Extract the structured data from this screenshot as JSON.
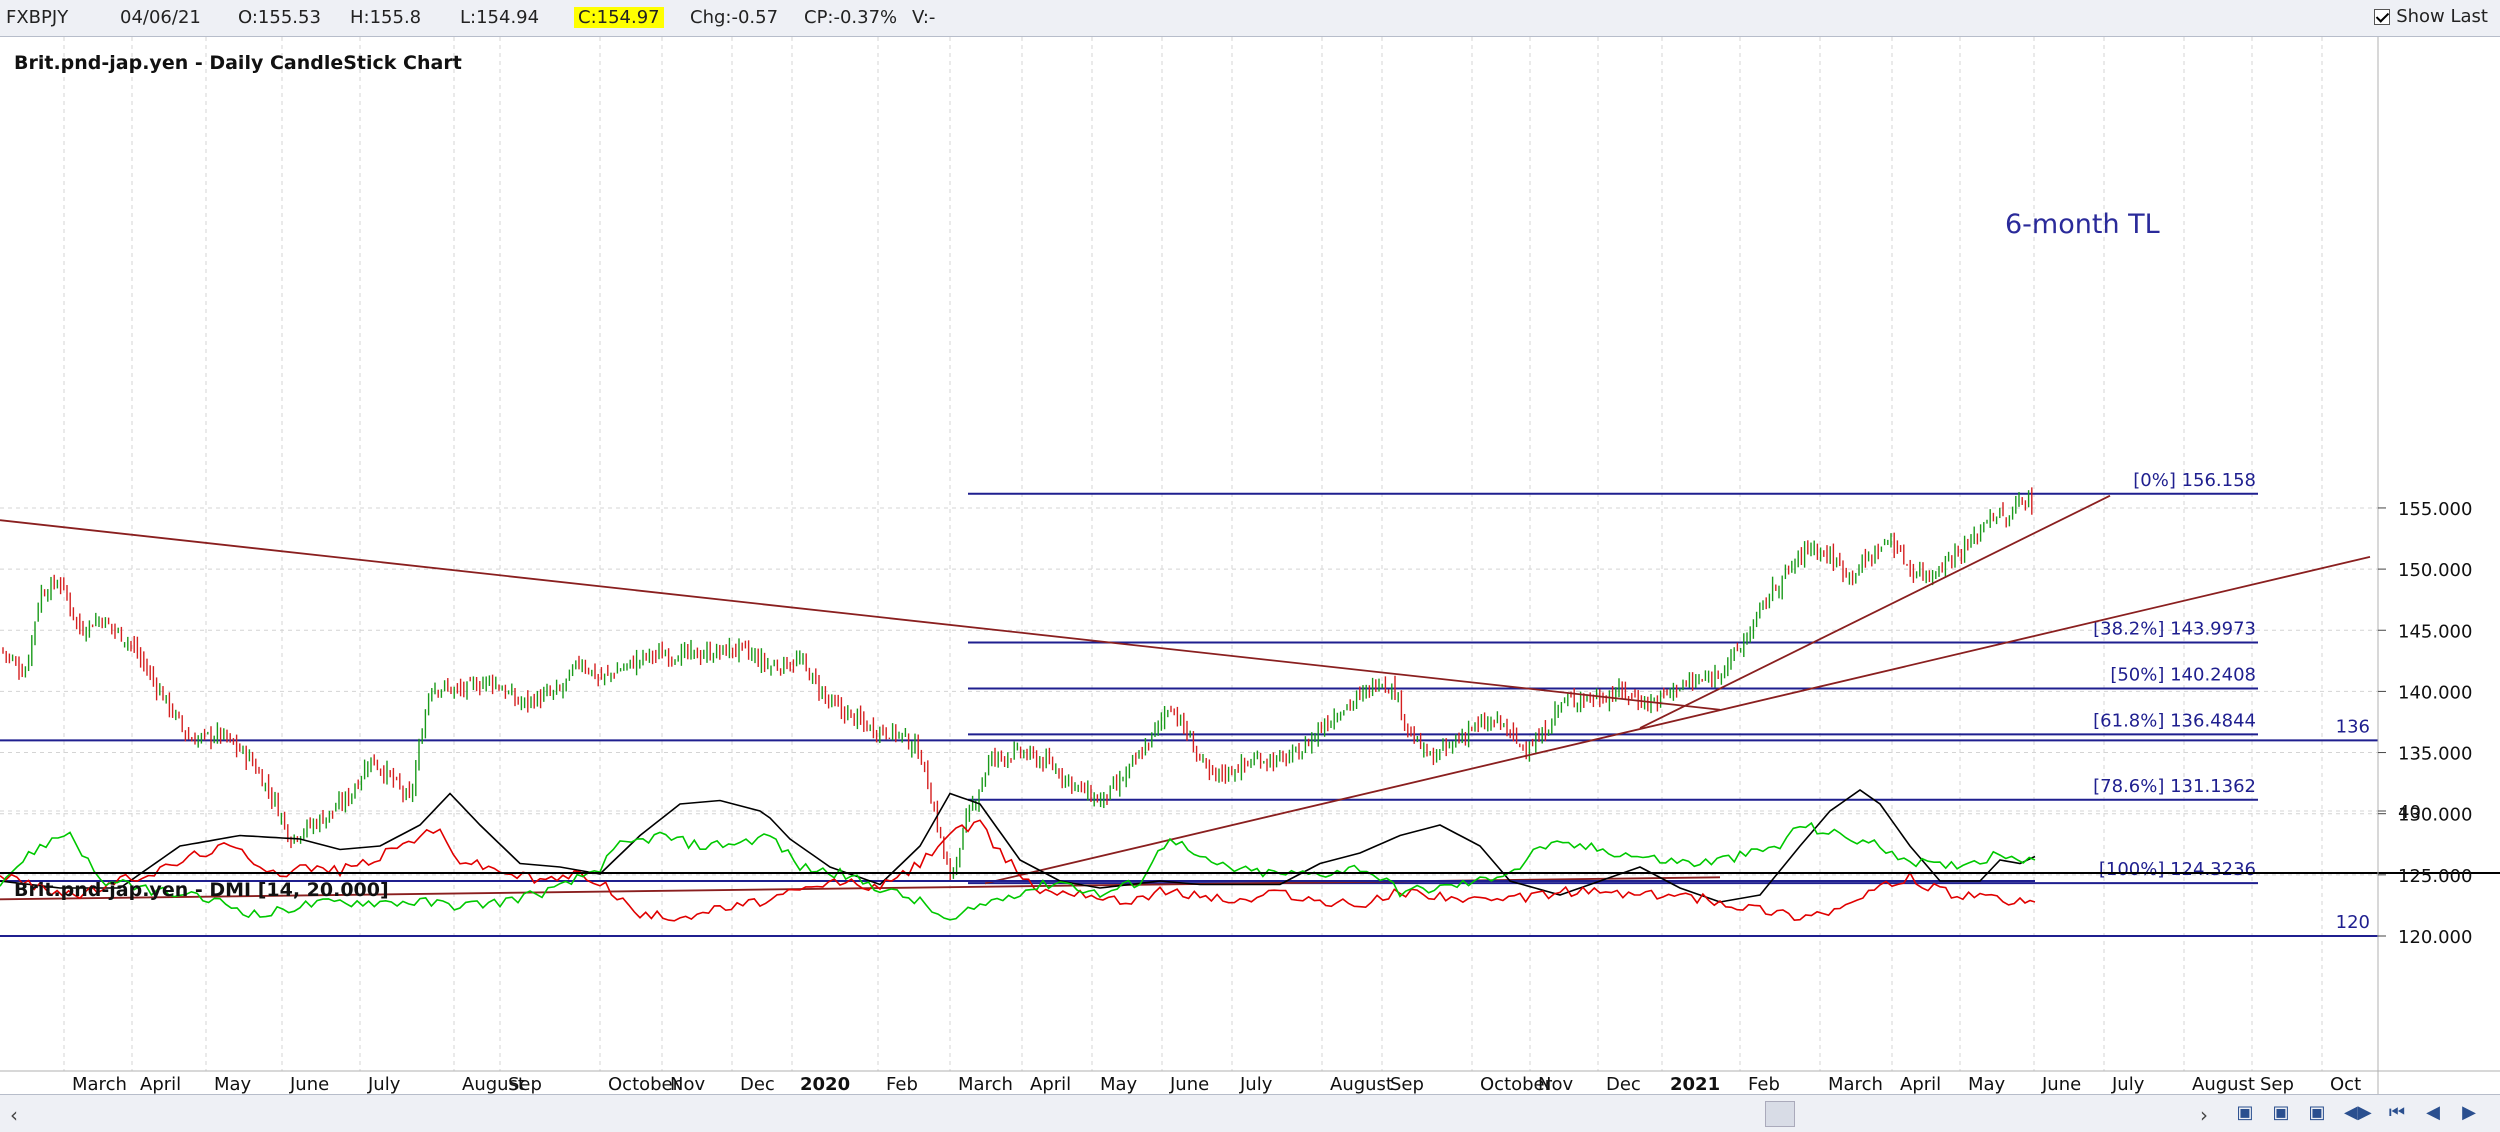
{
  "header": {
    "symbol": "FXBPJY",
    "date": "04/06/21",
    "open": "O:155.53",
    "high": "H:155.8",
    "low": "L:154.94",
    "close": "C:154.97",
    "change": "Chg:-0.57",
    "change_pct": "CP:-0.37%",
    "volume": "V:-",
    "show_last_label": "Show Last",
    "show_last_checked": true
  },
  "chart_data": [
    {
      "type": "candlestick",
      "title": "Brit.pnd-jap.yen - Daily CandleStick Chart",
      "ylim": [
        119,
        161
      ],
      "y_ticks": [
        "120.000",
        "125.000",
        "130.000",
        "135.000",
        "140.000",
        "145.000",
        "150.000",
        "155.000"
      ],
      "grid": true,
      "x_labels": [
        "March",
        "April",
        "May",
        "June",
        "July",
        "August",
        "Sep",
        "October",
        "Nov",
        "Dec",
        "2020",
        "Feb",
        "March",
        "April",
        "May",
        "June",
        "July",
        "August",
        "Sep",
        "October",
        "Nov",
        "Dec",
        "2021",
        "Feb",
        "March",
        "April",
        "May",
        "June",
        "July",
        "August",
        "Sep",
        "Oct"
      ],
      "close_path": [
        [
          0,
          143.5
        ],
        [
          25,
          141.5
        ],
        [
          40,
          148
        ],
        [
          60,
          149
        ],
        [
          80,
          145
        ],
        [
          100,
          146
        ],
        [
          130,
          144
        ],
        [
          160,
          140
        ],
        [
          190,
          136
        ],
        [
          220,
          136.5
        ],
        [
          250,
          134.5
        ],
        [
          275,
          131
        ],
        [
          290,
          128
        ],
        [
          310,
          129
        ],
        [
          330,
          130
        ],
        [
          350,
          131.5
        ],
        [
          370,
          134.5
        ],
        [
          390,
          133
        ],
        [
          410,
          131
        ],
        [
          430,
          140.5
        ],
        [
          460,
          140
        ],
        [
          490,
          141
        ],
        [
          520,
          139
        ],
        [
          560,
          140
        ],
        [
          580,
          142.5
        ],
        [
          600,
          141
        ],
        [
          650,
          143
        ],
        [
          700,
          143
        ],
        [
          740,
          143.5
        ],
        [
          770,
          142
        ],
        [
          800,
          142.5
        ],
        [
          830,
          139
        ],
        [
          870,
          137
        ],
        [
          900,
          136.5
        ],
        [
          920,
          135
        ],
        [
          935,
          130
        ],
        [
          950,
          124.5
        ],
        [
          965,
          129
        ],
        [
          990,
          134.5
        ],
        [
          1020,
          135
        ],
        [
          1050,
          134
        ],
        [
          1080,
          132
        ],
        [
          1100,
          131
        ],
        [
          1120,
          132.5
        ],
        [
          1150,
          136
        ],
        [
          1170,
          139
        ],
        [
          1190,
          136
        ],
        [
          1210,
          133
        ],
        [
          1230,
          133.5
        ],
        [
          1260,
          134.5
        ],
        [
          1280,
          134.3
        ],
        [
          1300,
          135
        ],
        [
          1320,
          137
        ],
        [
          1340,
          138.5
        ],
        [
          1360,
          139.5
        ],
        [
          1380,
          141
        ],
        [
          1395,
          140
        ],
        [
          1410,
          136.5
        ],
        [
          1430,
          134.5
        ],
        [
          1450,
          135.5
        ],
        [
          1470,
          137
        ],
        [
          1500,
          137.5
        ],
        [
          1520,
          135.5
        ],
        [
          1540,
          136
        ],
        [
          1560,
          139
        ],
        [
          1580,
          139.5
        ],
        [
          1600,
          139.5
        ],
        [
          1620,
          140
        ],
        [
          1650,
          139
        ],
        [
          1680,
          140.5
        ],
        [
          1710,
          141
        ],
        [
          1740,
          143.5
        ],
        [
          1770,
          148
        ],
        [
          1790,
          150
        ],
        [
          1810,
          152
        ],
        [
          1830,
          151
        ],
        [
          1850,
          149.5
        ],
        [
          1870,
          151
        ],
        [
          1890,
          152.5
        ],
        [
          1910,
          150
        ],
        [
          1930,
          149.5
        ],
        [
          1950,
          151
        ],
        [
          1970,
          152
        ],
        [
          1990,
          154.5
        ],
        [
          2010,
          154
        ],
        [
          2020,
          156
        ],
        [
          2030,
          155.5
        ],
        [
          2035,
          154.97
        ]
      ],
      "horizontal_lines": [
        {
          "label": "[0%] 156.158",
          "value": 156.158
        },
        {
          "label": "[38.2%] 143.9973",
          "value": 143.9973
        },
        {
          "label": "[50%] 140.2408",
          "value": 140.2408
        },
        {
          "label": "[61.8%] 136.4844",
          "value": 136.4844
        },
        {
          "label": "[78.6%] 131.1362",
          "value": 131.1362
        },
        {
          "label": "[100%] 124.3236",
          "value": 124.3236
        }
      ],
      "level_lines": [
        {
          "label": "136",
          "value": 136
        },
        {
          "label": "120",
          "value": 120
        }
      ],
      "trend_lines": [
        {
          "from": [
            0,
            154
          ],
          "to": [
            1720,
            138.5
          ]
        },
        {
          "from": [
            985,
            124.3
          ],
          "to": [
            2370,
            151
          ]
        },
        {
          "from": [
            1640,
            137
          ],
          "to": [
            2110,
            156
          ]
        },
        {
          "from": [
            0,
            123
          ],
          "to": [
            1720,
            124.8
          ]
        }
      ],
      "annotation": "6-month TL"
    },
    {
      "type": "line",
      "title": "Brit.pnd-jap.yen - DMI [14, 20.000]",
      "y_ticks": [
        "40"
      ],
      "reference_level": 20,
      "series": [
        {
          "color": "#000000",
          "values": [
            [
              0,
              20
            ],
            [
              60,
              18
            ],
            [
              120,
              18
            ],
            [
              180,
              30
            ],
            [
              240,
              33
            ],
            [
              300,
              32
            ],
            [
              340,
              29
            ],
            [
              380,
              30
            ],
            [
              420,
              36
            ],
            [
              450,
              45
            ],
            [
              480,
              36
            ],
            [
              520,
              25
            ],
            [
              560,
              24
            ],
            [
              600,
              22
            ],
            [
              640,
              33
            ],
            [
              680,
              42
            ],
            [
              720,
              43
            ],
            [
              760,
              40
            ],
            [
              770,
              38
            ],
            [
              790,
              32
            ],
            [
              830,
              24
            ],
            [
              880,
              19
            ],
            [
              920,
              30
            ],
            [
              950,
              45
            ],
            [
              980,
              42
            ],
            [
              1020,
              26
            ],
            [
              1060,
              20
            ],
            [
              1100,
              18
            ],
            [
              1160,
              20
            ],
            [
              1200,
              19
            ],
            [
              1240,
              19
            ],
            [
              1280,
              19
            ],
            [
              1320,
              25
            ],
            [
              1360,
              28
            ],
            [
              1400,
              33
            ],
            [
              1440,
              36
            ],
            [
              1480,
              30
            ],
            [
              1510,
              20
            ],
            [
              1560,
              16
            ],
            [
              1600,
              20
            ],
            [
              1640,
              24
            ],
            [
              1680,
              18
            ],
            [
              1720,
              14
            ],
            [
              1760,
              16
            ],
            [
              1800,
              30
            ],
            [
              1830,
              40
            ],
            [
              1860,
              46
            ],
            [
              1880,
              42
            ],
            [
              1910,
              30
            ],
            [
              1940,
              20
            ],
            [
              1980,
              20
            ],
            [
              2000,
              26
            ],
            [
              2020,
              25
            ],
            [
              2035,
              27
            ]
          ]
        },
        {
          "color": "#e00000",
          "values": [
            [
              0,
              22
            ],
            [
              40,
              18
            ],
            [
              80,
              16
            ],
            [
              120,
              20
            ],
            [
              160,
              23
            ],
            [
              200,
              28
            ],
            [
              230,
              30
            ],
            [
              260,
              25
            ],
            [
              280,
              22
            ],
            [
              300,
              24
            ],
            [
              340,
              23
            ],
            [
              380,
              27
            ],
            [
              420,
              33
            ],
            [
              440,
              34
            ],
            [
              460,
              26
            ],
            [
              500,
              23
            ],
            [
              540,
              20
            ],
            [
              580,
              22
            ],
            [
              600,
              20
            ],
            [
              640,
              10
            ],
            [
              680,
              10
            ],
            [
              720,
              12
            ],
            [
              760,
              14
            ],
            [
              800,
              17
            ],
            [
              840,
              20
            ],
            [
              880,
              18
            ],
            [
              920,
              25
            ],
            [
              950,
              34
            ],
            [
              980,
              36
            ],
            [
              1000,
              28
            ],
            [
              1040,
              17
            ],
            [
              1080,
              17
            ],
            [
              1120,
              14
            ],
            [
              1160,
              17
            ],
            [
              1200,
              16
            ],
            [
              1240,
              14
            ],
            [
              1280,
              17
            ],
            [
              1320,
              14
            ],
            [
              1360,
              13
            ],
            [
              1400,
              17
            ],
            [
              1440,
              16
            ],
            [
              1480,
              14
            ],
            [
              1520,
              15
            ],
            [
              1560,
              17
            ],
            [
              1600,
              17
            ],
            [
              1640,
              16
            ],
            [
              1680,
              16
            ],
            [
              1720,
              14
            ],
            [
              1760,
              12
            ],
            [
              1800,
              10
            ],
            [
              1840,
              12
            ],
            [
              1880,
              18
            ],
            [
              1910,
              21
            ],
            [
              1940,
              17
            ],
            [
              1980,
              15
            ],
            [
              2020,
              14
            ],
            [
              2035,
              14
            ]
          ]
        },
        {
          "color": "#00c800",
          "values": [
            [
              0,
              20
            ],
            [
              40,
              30
            ],
            [
              70,
              34
            ],
            [
              100,
              20
            ],
            [
              140,
              18
            ],
            [
              180,
              16
            ],
            [
              220,
              14
            ],
            [
              260,
              10
            ],
            [
              300,
              13
            ],
            [
              340,
              14
            ],
            [
              380,
              14
            ],
            [
              420,
              14
            ],
            [
              460,
              13
            ],
            [
              500,
              14
            ],
            [
              560,
              18
            ],
            [
              600,
              24
            ],
            [
              620,
              30
            ],
            [
              660,
              33
            ],
            [
              700,
              30
            ],
            [
              740,
              31
            ],
            [
              770,
              33
            ],
            [
              800,
              24
            ],
            [
              840,
              22
            ],
            [
              880,
              18
            ],
            [
              920,
              14
            ],
            [
              950,
              8
            ],
            [
              980,
              13
            ],
            [
              1020,
              17
            ],
            [
              1060,
              20
            ],
            [
              1100,
              16
            ],
            [
              1140,
              20
            ],
            [
              1170,
              33
            ],
            [
              1200,
              26
            ],
            [
              1240,
              23
            ],
            [
              1280,
              22
            ],
            [
              1320,
              22
            ],
            [
              1360,
              24
            ],
            [
              1380,
              21
            ],
            [
              1400,
              17
            ],
            [
              1440,
              18
            ],
            [
              1480,
              20
            ],
            [
              1520,
              24
            ],
            [
              1540,
              30
            ],
            [
              1580,
              30
            ],
            [
              1620,
              28
            ],
            [
              1660,
              26
            ],
            [
              1700,
              25
            ],
            [
              1740,
              27
            ],
            [
              1780,
              30
            ],
            [
              1800,
              36
            ],
            [
              1840,
              33
            ],
            [
              1880,
              30
            ],
            [
              1910,
              26
            ],
            [
              1940,
              24
            ],
            [
              1980,
              26
            ],
            [
              2000,
              28
            ],
            [
              2035,
              26
            ]
          ]
        }
      ]
    }
  ],
  "footer": {
    "scroll_left": "‹",
    "scroll_right": "›"
  }
}
